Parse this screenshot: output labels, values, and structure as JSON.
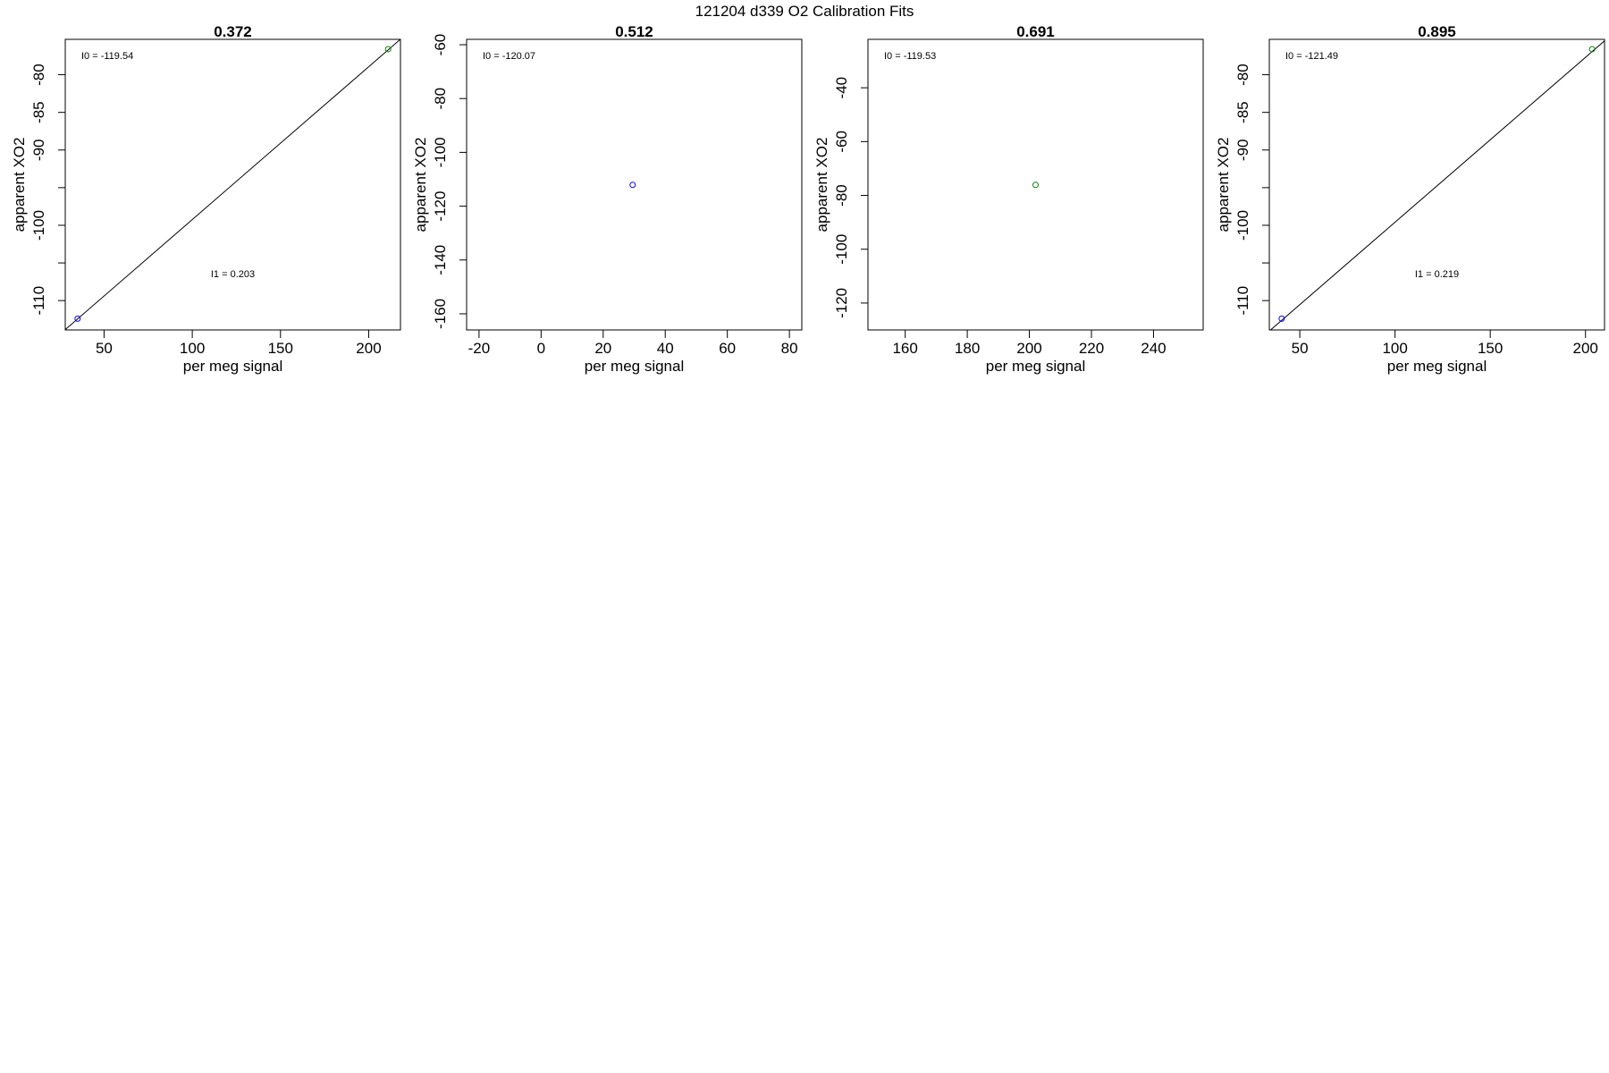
{
  "figure_title": "121204   d339   O2 Calibration Fits",
  "colors": {
    "low_point": "#0000ff",
    "high_point": "#008000",
    "line": "#000000",
    "frame": "#000000"
  },
  "chart_data": [
    {
      "type": "scatter",
      "title": "0.372",
      "xlabel": "per meg signal",
      "ylabel": "apparent XO2",
      "xlim": [
        28,
        218
      ],
      "ylim": [
        -113.9,
        -75.3
      ],
      "xticks": [
        50,
        100,
        150,
        200
      ],
      "yticks": [
        -80,
        -85,
        -90,
        -95,
        -100,
        -105,
        -110
      ],
      "yticklabels": [
        "-80",
        "-85",
        "-90",
        "",
        "-100",
        "",
        "-110"
      ],
      "points": [
        {
          "x": 35,
          "y": -112.4,
          "color": "#0000ff"
        },
        {
          "x": 211,
          "y": -76.6,
          "color": "#008000"
        }
      ],
      "fit_line": {
        "intercept": -119.54,
        "slope": 0.203
      },
      "annotations": [
        {
          "text": "I0 =  -119.54",
          "anchor": "top-left"
        },
        {
          "text": "I1 =  0.203",
          "anchor": "center-bottom"
        }
      ],
      "grid": false
    },
    {
      "type": "scatter",
      "title": "0.512",
      "xlabel": "per meg signal",
      "ylabel": "apparent XO2",
      "xlim": [
        -24,
        84
      ],
      "ylim": [
        -166,
        -58
      ],
      "xticks": [
        -20,
        0,
        20,
        40,
        60,
        80
      ],
      "yticks": [
        -60,
        -80,
        -100,
        -120,
        -140,
        -160
      ],
      "yticklabels": [
        "-60",
        "-80",
        "-100",
        "-120",
        "-140",
        "-160"
      ],
      "points": [
        {
          "x": 29.5,
          "y": -112.1,
          "color": "#0000ff"
        }
      ],
      "annotations": [
        {
          "text": "I0 =  -120.07",
          "anchor": "top-left"
        }
      ],
      "grid": false
    },
    {
      "type": "scatter",
      "title": "0.691",
      "xlabel": "per meg signal",
      "ylabel": "apparent XO2",
      "xlim": [
        148,
        256
      ],
      "ylim": [
        -130,
        -22
      ],
      "xticks": [
        160,
        180,
        200,
        220,
        240
      ],
      "yticks": [
        -40,
        -60,
        -80,
        -100,
        -120
      ],
      "yticklabels": [
        "-40",
        "-60",
        "-80",
        "-100",
        "-120"
      ],
      "points": [
        {
          "x": 202,
          "y": -76.1,
          "color": "#008000"
        }
      ],
      "annotations": [
        {
          "text": "I0 =  -119.53",
          "anchor": "top-left"
        }
      ],
      "grid": false
    },
    {
      "type": "scatter",
      "title": "0.895",
      "xlabel": "per meg signal",
      "ylabel": "apparent XO2",
      "xlim": [
        34,
        210
      ],
      "ylim": [
        -113.9,
        -75.3
      ],
      "xticks": [
        50,
        100,
        150,
        200
      ],
      "yticks": [
        -80,
        -85,
        -90,
        -95,
        -100,
        -105,
        -110
      ],
      "yticklabels": [
        "-80",
        "-85",
        "-90",
        "",
        "-100",
        "",
        "-110"
      ],
      "points": [
        {
          "x": 40.5,
          "y": -112.4,
          "color": "#0000ff"
        },
        {
          "x": 203.5,
          "y": -76.6,
          "color": "#008000"
        }
      ],
      "fit_line": {
        "intercept": -121.49,
        "slope": 0.219
      },
      "annotations": [
        {
          "text": "I0 =  -121.49",
          "anchor": "top-left"
        },
        {
          "text": "I1 =  0.219",
          "anchor": "center-bottom"
        }
      ],
      "grid": false
    }
  ]
}
